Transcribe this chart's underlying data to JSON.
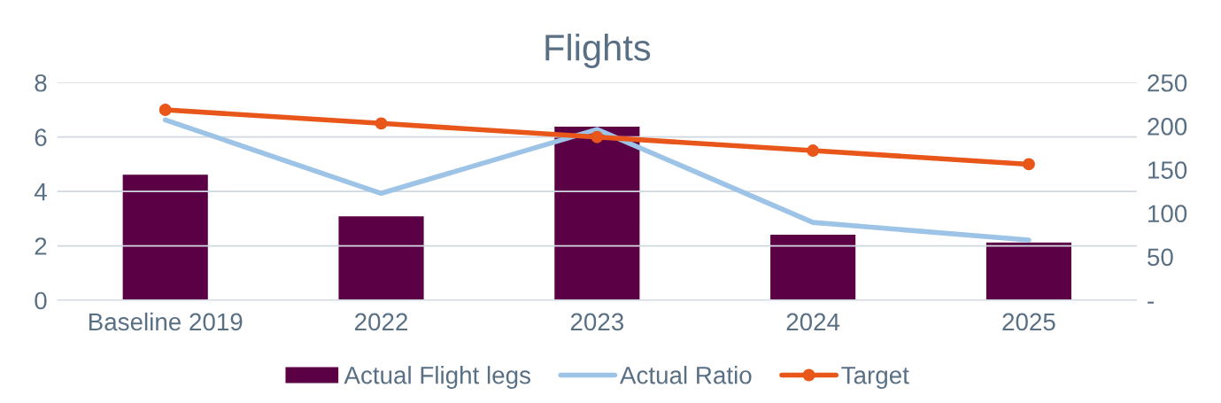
{
  "chart_data": {
    "type": "bar",
    "title": "Flights",
    "categories": [
      "Baseline 2019",
      "2022",
      "2023",
      "2024",
      "2025"
    ],
    "series": [
      {
        "name": "Actual Flight legs",
        "axis": "y2",
        "color": "#5c0046",
        "values": [
          145,
          97,
          200,
          76,
          67
        ]
      },
      {
        "name": "Actual Ratio",
        "type": "line",
        "color": "#9dc3e6",
        "marker": "none",
        "values": [
          6.63,
          3.93,
          6.28,
          2.86,
          2.21
        ]
      },
      {
        "name": "Target",
        "type": "line",
        "color": "#e8561a",
        "marker": "circle",
        "values": [
          7,
          6.5,
          6,
          5.5,
          5
        ]
      }
    ],
    "ylim": [
      0,
      8
    ],
    "yticks": [
      0,
      2,
      4,
      6,
      8
    ],
    "y2lim": [
      0,
      250
    ],
    "y2ticks": [
      {
        "value": 0,
        "label": "-"
      },
      50,
      100,
      150,
      200,
      250
    ],
    "grid": "y",
    "legend": "bottom"
  }
}
